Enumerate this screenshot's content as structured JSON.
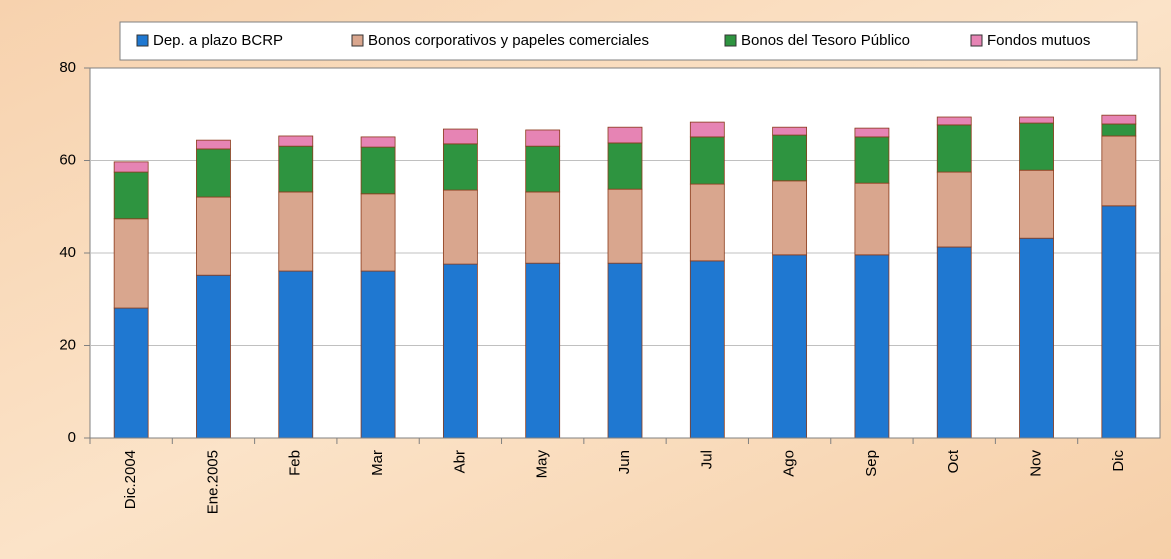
{
  "chart_data": {
    "type": "stacked_bar",
    "categories": [
      "Dic.2004",
      "Ene.2005",
      "Feb",
      "Mar",
      "Abr",
      "May",
      "Jun",
      "Jul",
      "Ago",
      "Sep",
      "Oct",
      "Nov",
      "Dic"
    ],
    "series": [
      {
        "name": "Dep. a plazo BCRP",
        "color": "#1f78d1",
        "values": [
          28.1,
          35.2,
          36.1,
          36.1,
          37.6,
          37.8,
          37.8,
          38.3,
          39.6,
          39.6,
          41.3,
          43.2,
          50.2
        ]
      },
      {
        "name": "Bonos corporativos y papeles comerciales",
        "color": "#d9a68e",
        "values": [
          19.3,
          16.9,
          17.1,
          16.7,
          16.0,
          15.4,
          16.0,
          16.6,
          16.0,
          15.5,
          16.2,
          14.7,
          15.1
        ]
      },
      {
        "name": "Bonos del Tesoro Público",
        "color": "#2e9440",
        "values": [
          10.1,
          10.4,
          9.9,
          10.1,
          10.0,
          9.9,
          10.0,
          10.2,
          9.9,
          10.0,
          10.2,
          10.2,
          2.6
        ]
      },
      {
        "name": "Fondos mutuos",
        "color": "#e684b4",
        "values": [
          2.2,
          1.9,
          2.2,
          2.2,
          3.2,
          3.5,
          3.4,
          3.2,
          1.7,
          1.9,
          1.7,
          1.3,
          1.9
        ]
      }
    ],
    "ylim": [
      0,
      80
    ],
    "yticks": [
      0,
      20,
      40,
      60,
      80
    ],
    "grid": true
  }
}
